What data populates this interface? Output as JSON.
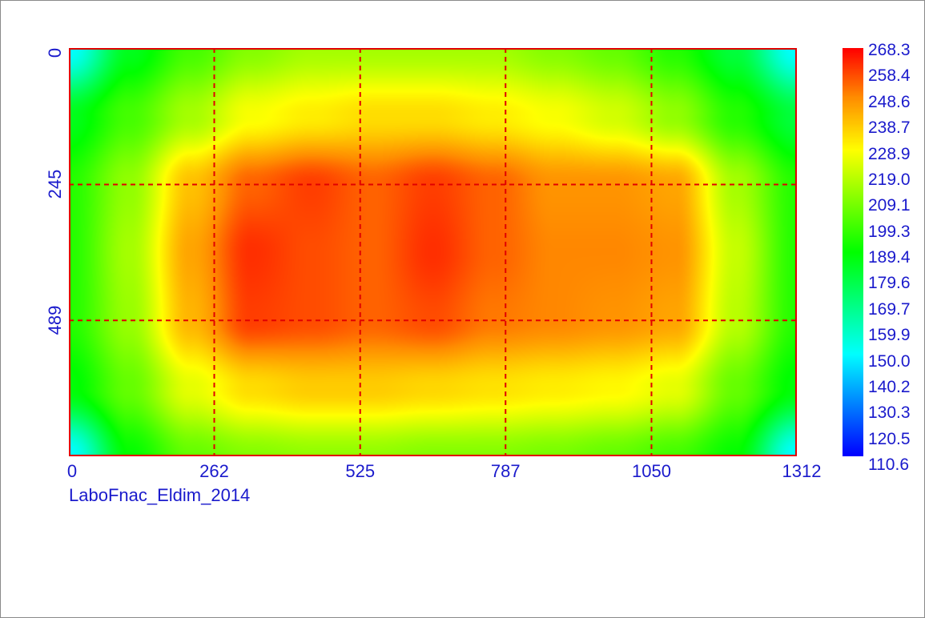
{
  "chart_data": {
    "type": "heatmap",
    "title": "LaboFnac_Eldim_2014",
    "x_ticks": [
      "0",
      "262",
      "525",
      "787",
      "1050",
      "1312"
    ],
    "y_ticks": [
      "0",
      "245",
      "489"
    ],
    "xlim": [
      0,
      1312
    ],
    "ylim": [
      0,
      733
    ],
    "y_direction": "top-to-bottom",
    "grid": true,
    "grid_style": "dashed red",
    "colorbar": {
      "range": [
        110.6,
        268.3
      ],
      "labels": [
        "268.3",
        "258.4",
        "248.6",
        "238.7",
        "228.9",
        "219.0",
        "209.1",
        "199.3",
        "189.4",
        "179.6",
        "169.7",
        "159.9",
        "150.0",
        "140.2",
        "130.3",
        "120.5",
        "110.6"
      ],
      "colors": [
        "#0000ff",
        "#00ffff",
        "#00ff00",
        "#ffff00",
        "#ff8c00",
        "#ff0000"
      ],
      "placement": "right"
    },
    "x": [
      0,
      109,
      219,
      328,
      437,
      547,
      656,
      765,
      875,
      984,
      1093,
      1203,
      1312
    ],
    "y": [
      0,
      122,
      244,
      366,
      489,
      611,
      733
    ],
    "z": [
      [
        150,
        185,
        200,
        210,
        215,
        215,
        215,
        215,
        210,
        205,
        195,
        180,
        150
      ],
      [
        185,
        200,
        215,
        228,
        232,
        235,
        235,
        232,
        228,
        222,
        212,
        195,
        180
      ],
      [
        195,
        212,
        240,
        255,
        260,
        255,
        260,
        255,
        248,
        248,
        245,
        215,
        195
      ],
      [
        195,
        215,
        245,
        262,
        258,
        255,
        262,
        255,
        250,
        250,
        248,
        220,
        195
      ],
      [
        195,
        213,
        242,
        260,
        258,
        255,
        258,
        252,
        250,
        248,
        245,
        218,
        195
      ],
      [
        188,
        205,
        225,
        235,
        238,
        238,
        236,
        234,
        232,
        230,
        225,
        205,
        188
      ],
      [
        150,
        190,
        205,
        210,
        212,
        212,
        210,
        210,
        208,
        205,
        200,
        190,
        150
      ]
    ]
  }
}
